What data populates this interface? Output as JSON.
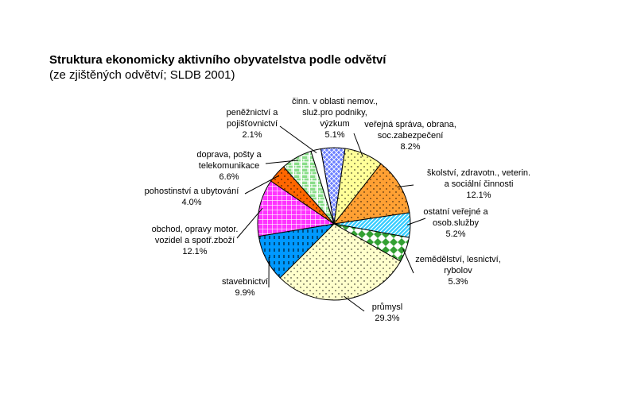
{
  "title": "Struktura ekonomicky aktivního obyvatelstva podle odvětví",
  "subtitle": " (ze zjištěných odvětví; SLDB 2001)",
  "chart_data": {
    "type": "pie",
    "title": "Struktura ekonomicky aktivního obyvatelstva podle odvětví",
    "subtitle": "(ze zjištěných odvětví; SLDB 2001)",
    "unit": "%",
    "slices": [
      {
        "label": [
          "činn. v oblasti nemov.,",
          "služ.pro podniky,",
          "výzkum"
        ],
        "value": 5.1,
        "value_label": "5.1%",
        "fill": "#6b7fff",
        "pattern": "diamonds",
        "side": "center"
      },
      {
        "label": [
          "veřejná správa, obrana,",
          "soc.zabezpečení"
        ],
        "value": 8.2,
        "value_label": "8.2%",
        "fill": "#ffff99",
        "pattern": "dots",
        "side": "right"
      },
      {
        "label": [
          "školství, zdravotn., veterin.",
          "a sociální činnosti"
        ],
        "value": 12.1,
        "value_label": "12.1%",
        "fill": "#ffa033",
        "pattern": "dots",
        "side": "right"
      },
      {
        "label": [
          "ostatní veřejné a",
          "osob.služby"
        ],
        "value": 5.2,
        "value_label": "5.2%",
        "fill": "#33ccff",
        "pattern": "hatch",
        "side": "right"
      },
      {
        "label": [
          "zemědělství, lesnictví,",
          "rybolov"
        ],
        "value": 5.3,
        "value_label": "5.3%",
        "fill": "#33a033",
        "pattern": "checker",
        "side": "right"
      },
      {
        "label": [
          "průmysl"
        ],
        "value": 29.3,
        "value_label": "29.3%",
        "fill": "#ffffcc",
        "pattern": "dots",
        "side": "bottom"
      },
      {
        "label": [
          "stavebnictví"
        ],
        "value": 9.9,
        "value_label": "9.9%",
        "fill": "#0099ff",
        "pattern": "dashes",
        "side": "left"
      },
      {
        "label": [
          "obchod, opravy motor.",
          "vozidel a spotř.zboží"
        ],
        "value": 12.1,
        "value_label": "12.1%",
        "fill": "#ff33ff",
        "pattern": "grid",
        "side": "left"
      },
      {
        "label": [
          "pohostinství a ubytování"
        ],
        "value": 4.0,
        "value_label": "4.0%",
        "fill": "#ff6600",
        "pattern": "dots",
        "side": "left"
      },
      {
        "label": [
          "doprava, pošty a",
          "telekomunikace"
        ],
        "value": 6.6,
        "value_label": "6.6%",
        "fill": "#88dd88",
        "pattern": "bricks",
        "side": "left"
      },
      {
        "label": [
          "peněžnictví a",
          "pojišťovnictví"
        ],
        "value": 2.1,
        "value_label": "2.1%",
        "fill": "#ffffff",
        "pattern": "none",
        "side": "left"
      }
    ]
  }
}
